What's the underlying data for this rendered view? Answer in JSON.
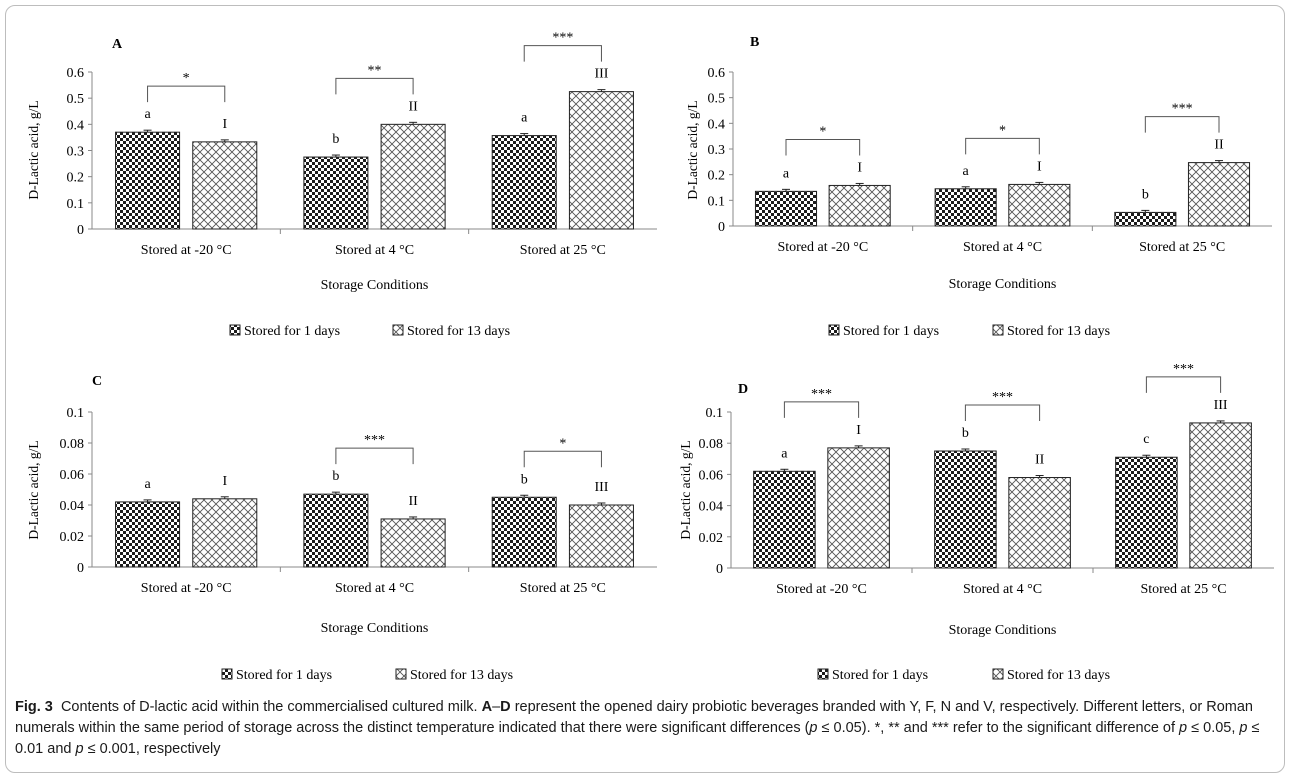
{
  "colors": {
    "bar_fill_dark": "#1c1c1c",
    "bar_fill_light": "#ffffff",
    "axis": "#888888"
  },
  "caption": {
    "label": "Fig. 3",
    "text_1": "Contents of D-lactic acid within the commercialised cultured milk.",
    "panels_bold": "A",
    "dash": "–",
    "panels_bold_2": "D",
    "text_2": "represent the opened dairy probiotic beverages branded with Y, F, N and V, respectively. Different letters, or Roman numerals within the same period of storage across the distinct temperature indicated that there were significant differences (",
    "p_symbol": "p",
    "le_005": " ≤ 0.05). *, ** and *** refer to the significant difference of ",
    "p1": "p",
    "t1": " ≤ 0.05, ",
    "p2": "p",
    "t2": " ≤ 0.01 and ",
    "p3": "p",
    "t3": " ≤ 0.001,  respectively"
  },
  "chart_data": [
    {
      "type": "bar",
      "panel_label": "A",
      "categories": [
        "Stored at -20 °C",
        "Stored at 4 °C",
        "Stored at 25 °C"
      ],
      "series": [
        {
          "name": "Stored for 1 days",
          "values": [
            0.37,
            0.275,
            0.357
          ],
          "letters": [
            "a",
            "b",
            "a"
          ]
        },
        {
          "name": "Stored for 13 days",
          "values": [
            0.333,
            0.4,
            0.525
          ],
          "letters": [
            "I",
            "II",
            "III"
          ]
        }
      ],
      "significance": [
        "*",
        "**",
        "***"
      ],
      "ylabel": "D-Lactic acid, g/L",
      "xlabel": "Storage Conditions",
      "ylim": [
        0,
        0.6
      ],
      "yticks": [
        "0",
        "0.1",
        "0.2",
        "0.3",
        "0.4",
        "0.5",
        "0.6"
      ],
      "legend_position": "bottom"
    },
    {
      "type": "bar",
      "panel_label": "B",
      "categories": [
        "Stored at -20 °C",
        "Stored at 4 °C",
        "Stored at 25 °C"
      ],
      "series": [
        {
          "name": "Stored for 1 days",
          "values": [
            0.135,
            0.145,
            0.053
          ],
          "letters": [
            "a",
            "a",
            "b"
          ]
        },
        {
          "name": "Stored for 13 days",
          "values": [
            0.158,
            0.162,
            0.247
          ],
          "letters": [
            "I",
            "I",
            "II"
          ]
        }
      ],
      "significance": [
        "*",
        "*",
        "***"
      ],
      "ylabel": "D-Lactic acid, g/L",
      "xlabel": "Storage Conditions",
      "ylim": [
        0,
        0.6
      ],
      "yticks": [
        "0",
        "0.1",
        "0.2",
        "0.3",
        "0.4",
        "0.5",
        "0.6"
      ],
      "legend_position": "bottom"
    },
    {
      "type": "bar",
      "panel_label": "C",
      "categories": [
        "Stored at -20 °C",
        "Stored at 4 °C",
        "Stored at 25 °C"
      ],
      "series": [
        {
          "name": "Stored for 1 days",
          "values": [
            0.042,
            0.047,
            0.045
          ],
          "letters": [
            "a",
            "b",
            "b"
          ]
        },
        {
          "name": "Stored for 13 days",
          "values": [
            0.044,
            0.031,
            0.04
          ],
          "letters": [
            "I",
            "II",
            "III"
          ]
        }
      ],
      "significance": [
        "",
        "***",
        "*"
      ],
      "ylabel": "D-Lactic acid, g/L",
      "xlabel": "Storage Conditions",
      "ylim": [
        0,
        0.1
      ],
      "yticks": [
        "0",
        "0.02",
        "0.04",
        "0.06",
        "0.08",
        "0.1"
      ],
      "legend_position": "bottom"
    },
    {
      "type": "bar",
      "panel_label": "D",
      "categories": [
        "Stored at -20 °C",
        "Stored at 4 °C",
        "Stored at 25 °C"
      ],
      "series": [
        {
          "name": "Stored for 1 days",
          "values": [
            0.062,
            0.075,
            0.071
          ],
          "letters": [
            "a",
            "b",
            "c"
          ]
        },
        {
          "name": "Stored for 13 days",
          "values": [
            0.077,
            0.058,
            0.093
          ],
          "letters": [
            "I",
            "II",
            "III"
          ]
        }
      ],
      "significance": [
        "***",
        "***",
        "***"
      ],
      "ylabel": "D-Lactic acid, g/L",
      "xlabel": "Storage Conditions",
      "ylim": [
        0,
        0.1
      ],
      "yticks": [
        "0",
        "0.02",
        "0.04",
        "0.06",
        "0.08",
        "0.1"
      ],
      "legend_position": "bottom"
    }
  ]
}
